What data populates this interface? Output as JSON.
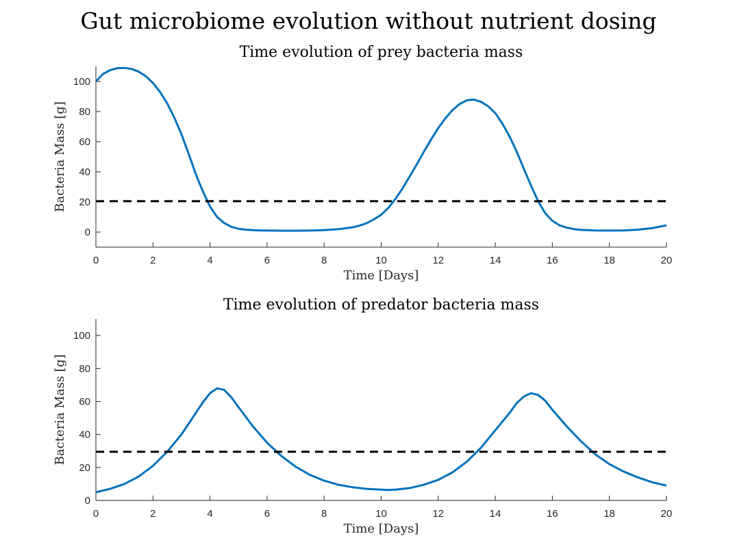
{
  "figure": {
    "suptitle": "Gut microbiome evolution without nutrient dosing"
  },
  "chart_data": [
    {
      "type": "line",
      "title": "Time evolution of prey bacteria mass",
      "xlabel": "Time [Days]",
      "ylabel": "Bacteria Mass [g]",
      "xlim": [
        0,
        20
      ],
      "ylim": [
        -10,
        110
      ],
      "xticks": [
        0,
        2,
        4,
        6,
        8,
        10,
        12,
        14,
        16,
        18,
        20
      ],
      "yticks": [
        0,
        20,
        40,
        60,
        80,
        100
      ],
      "grid": false,
      "series": [
        {
          "line_color": "#0072BD",
          "line_style": "solid",
          "x": [
            0,
            0.25,
            0.5,
            0.75,
            1.0,
            1.25,
            1.5,
            1.75,
            2.0,
            2.25,
            2.5,
            2.75,
            3.0,
            3.25,
            3.5,
            3.75,
            4.0,
            4.25,
            4.5,
            4.75,
            5.0,
            5.25,
            5.5,
            5.75,
            6.0,
            6.5,
            7.0,
            7.5,
            8.0,
            8.5,
            9.0,
            9.25,
            9.5,
            9.75,
            10.0,
            10.25,
            10.5,
            10.75,
            11.0,
            11.25,
            11.5,
            11.75,
            12.0,
            12.25,
            12.5,
            12.75,
            13.0,
            13.25,
            13.5,
            13.75,
            14.0,
            14.25,
            14.5,
            14.75,
            15.0,
            15.25,
            15.5,
            15.75,
            16.0,
            16.25,
            16.5,
            16.75,
            17.0,
            17.5,
            18.0,
            18.5,
            19.0,
            19.5,
            20.0
          ],
          "y": [
            100,
            105,
            107.5,
            108.8,
            109,
            108.3,
            106.5,
            103.5,
            99,
            93,
            85.5,
            76,
            65,
            52,
            38.5,
            27,
            17,
            10,
            6,
            3.5,
            2.2,
            1.6,
            1.3,
            1.1,
            1.0,
            0.9,
            0.9,
            1.0,
            1.3,
            1.9,
            3.2,
            4.3,
            6.0,
            8.5,
            11.5,
            16,
            22,
            29,
            37,
            45,
            53.5,
            61.5,
            69,
            75.5,
            81,
            85,
            87.5,
            88,
            86.5,
            83.5,
            79,
            72,
            63.5,
            53.5,
            42,
            31,
            20.5,
            12.5,
            7.5,
            4.5,
            3.0,
            2.0,
            1.5,
            1.1,
            1.0,
            1.1,
            1.6,
            2.6,
            4.5
          ]
        },
        {
          "line_color": "#000000",
          "line_style": "dashed",
          "x": [
            0,
            20
          ],
          "y": [
            20.5,
            20.5
          ]
        }
      ]
    },
    {
      "type": "line",
      "title": "Time evolution of predator bacteria mass",
      "xlabel": "Time [Days]",
      "ylabel": "Bacteria Mass [g]",
      "xlim": [
        0,
        20
      ],
      "ylim": [
        0,
        110
      ],
      "xticks": [
        0,
        2,
        4,
        6,
        8,
        10,
        12,
        14,
        16,
        18,
        20
      ],
      "yticks": [
        0,
        20,
        40,
        60,
        80,
        100
      ],
      "grid": false,
      "series": [
        {
          "line_color": "#0072BD",
          "line_style": "solid",
          "x": [
            0,
            0.5,
            1.0,
            1.5,
            2.0,
            2.5,
            3.0,
            3.25,
            3.5,
            3.75,
            4.0,
            4.25,
            4.5,
            4.75,
            5.0,
            5.5,
            6.0,
            6.5,
            7.0,
            7.5,
            8.0,
            8.5,
            9.0,
            9.5,
            10.0,
            10.25,
            10.5,
            11.0,
            11.5,
            12.0,
            12.5,
            13.0,
            13.5,
            14.0,
            14.5,
            14.75,
            15.0,
            15.25,
            15.5,
            15.75,
            16.0,
            16.5,
            17.0,
            17.5,
            18.0,
            18.5,
            19.0,
            19.5,
            20.0
          ],
          "y": [
            5,
            7,
            10,
            14.5,
            21,
            29.5,
            40,
            46.5,
            53,
            59.5,
            65,
            68,
            67,
            62.5,
            56.5,
            45,
            35,
            27,
            20.5,
            15.5,
            12,
            9.5,
            8,
            7,
            6.5,
            6.3,
            6.5,
            7.5,
            9.5,
            12.5,
            17,
            23.5,
            32,
            42.5,
            53,
            59,
            63,
            65,
            64,
            60.5,
            55,
            45,
            36,
            28,
            22,
            17.5,
            14,
            11,
            9
          ]
        },
        {
          "line_color": "#000000",
          "line_style": "dashed",
          "x": [
            0,
            20
          ],
          "y": [
            29.5,
            29.5
          ]
        }
      ]
    }
  ]
}
